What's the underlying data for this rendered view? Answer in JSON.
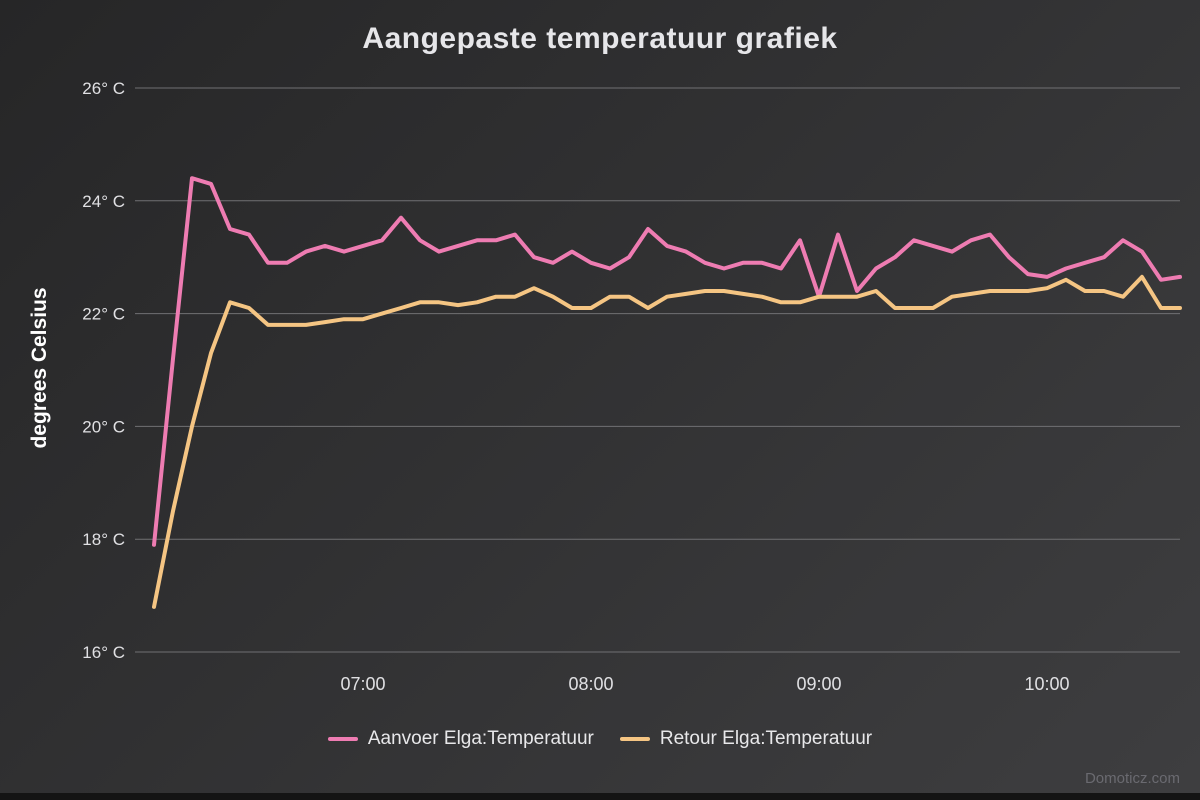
{
  "chart": {
    "title": "Aangepaste temperatuur grafiek",
    "ylabel": "degrees Celsius"
  },
  "chart_data": {
    "type": "line",
    "title": "Aangepaste temperatuur grafiek",
    "xlabel": "",
    "ylabel": "degrees Celsius",
    "ylim": [
      16,
      26
    ],
    "x_range": [
      "06:00",
      "10:35"
    ],
    "grid": "horizontal",
    "grid_color": "#707073",
    "text_color": "#e0e0e3",
    "legend_position": "bottom",
    "yticks": [
      {
        "value": 16,
        "label": "16° C"
      },
      {
        "value": 18,
        "label": "18° C"
      },
      {
        "value": 20,
        "label": "20° C"
      },
      {
        "value": 22,
        "label": "22° C"
      },
      {
        "value": 24,
        "label": "24° C"
      },
      {
        "value": 26,
        "label": "26° C"
      }
    ],
    "xticks": [
      "07:00",
      "08:00",
      "09:00",
      "10:00"
    ],
    "x": [
      "06:05",
      "06:10",
      "06:15",
      "06:20",
      "06:25",
      "06:30",
      "06:35",
      "06:40",
      "06:45",
      "06:50",
      "06:55",
      "07:00",
      "07:05",
      "07:10",
      "07:15",
      "07:20",
      "07:25",
      "07:30",
      "07:35",
      "07:40",
      "07:45",
      "07:50",
      "07:55",
      "08:00",
      "08:05",
      "08:10",
      "08:15",
      "08:20",
      "08:25",
      "08:30",
      "08:35",
      "08:40",
      "08:45",
      "08:50",
      "08:55",
      "09:00",
      "09:05",
      "09:10",
      "09:15",
      "09:20",
      "09:25",
      "09:30",
      "09:35",
      "09:40",
      "09:45",
      "09:50",
      "09:55",
      "10:00",
      "10:05",
      "10:10",
      "10:15",
      "10:20",
      "10:25",
      "10:30",
      "10:35"
    ],
    "series": [
      {
        "name": "Aanvoer Elga:Temperatuur",
        "color": "#ee7cb2",
        "values": [
          17.9,
          21.2,
          24.4,
          24.3,
          23.5,
          23.4,
          22.9,
          22.9,
          23.1,
          23.2,
          23.1,
          23.2,
          23.3,
          23.7,
          23.3,
          23.1,
          23.2,
          23.3,
          23.3,
          23.4,
          23.0,
          22.9,
          23.1,
          22.9,
          22.8,
          23.0,
          23.5,
          23.2,
          23.1,
          22.9,
          22.8,
          22.9,
          22.9,
          22.8,
          23.3,
          22.3,
          23.4,
          22.4,
          22.8,
          23.0,
          23.3,
          23.2,
          23.1,
          23.3,
          23.4,
          23.0,
          22.7,
          22.65,
          22.8,
          22.9,
          23.0,
          23.3,
          23.1,
          22.6,
          22.65
        ]
      },
      {
        "name": "Retour Elga:Temperatuur",
        "color": "#f5c583",
        "values": [
          16.8,
          18.5,
          20.0,
          21.3,
          22.2,
          22.1,
          21.8,
          21.8,
          21.8,
          21.85,
          21.9,
          21.9,
          22.0,
          22.1,
          22.2,
          22.2,
          22.15,
          22.2,
          22.3,
          22.3,
          22.45,
          22.3,
          22.1,
          22.1,
          22.3,
          22.3,
          22.1,
          22.3,
          22.35,
          22.4,
          22.4,
          22.35,
          22.3,
          22.2,
          22.2,
          22.3,
          22.3,
          22.3,
          22.4,
          22.1,
          22.1,
          22.1,
          22.3,
          22.35,
          22.4,
          22.4,
          22.4,
          22.45,
          22.6,
          22.4,
          22.4,
          22.3,
          22.65,
          22.1,
          22.1
        ]
      }
    ]
  },
  "footer": {
    "watermark": "Domoticz.com"
  }
}
